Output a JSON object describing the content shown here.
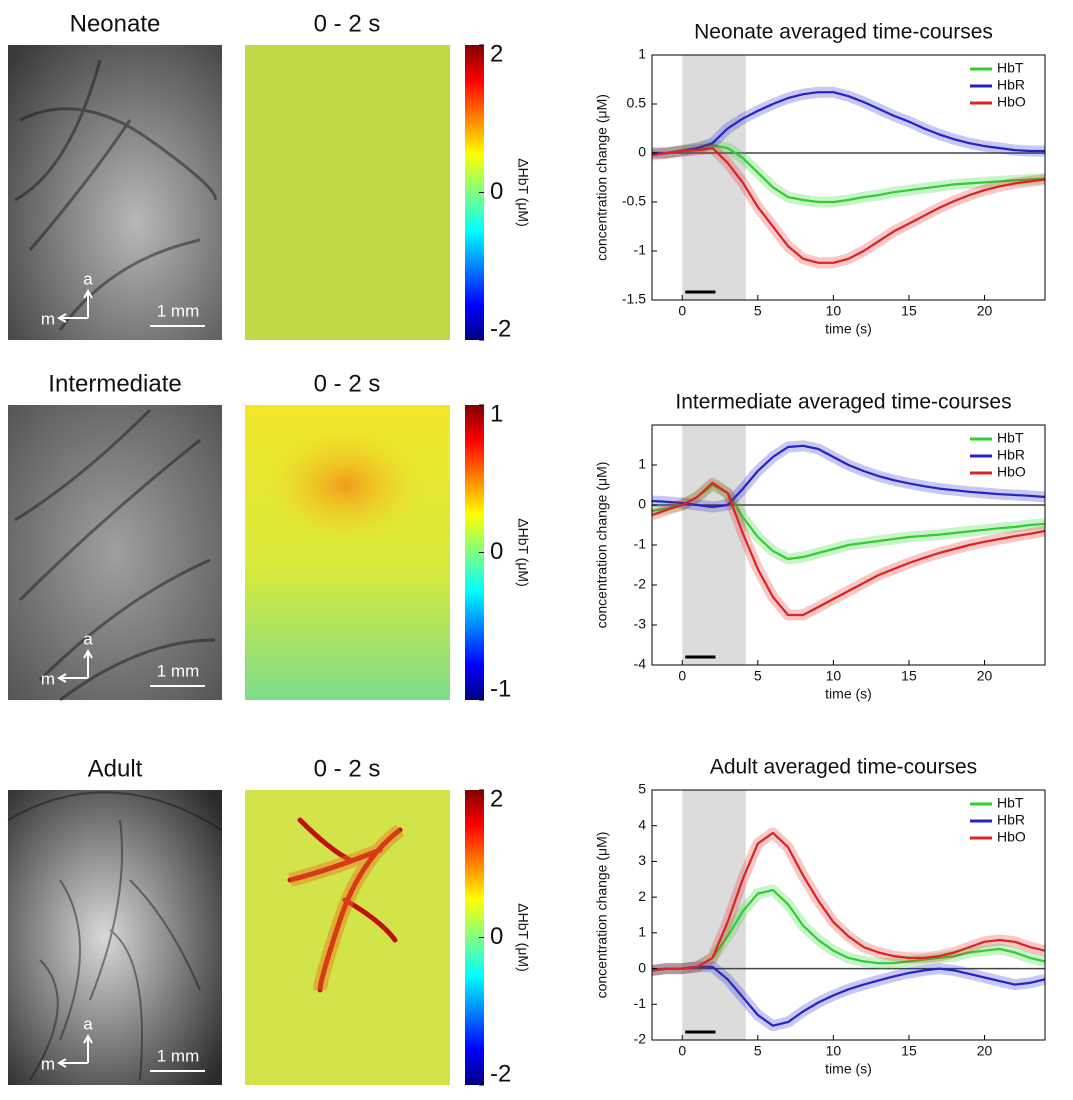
{
  "chart_data": [
    {
      "type": "line",
      "title": "Neonate averaged time-courses",
      "xlabel": "time (s)",
      "ylabel": "concentration change (μM)",
      "x": [
        -2,
        -1,
        0,
        1,
        2,
        3,
        4,
        5,
        6,
        7,
        8,
        9,
        10,
        11,
        12,
        13,
        14,
        15,
        16,
        17,
        18,
        19,
        20,
        21,
        22,
        23,
        24
      ],
      "xlim": [
        -2,
        24
      ],
      "xticks": [
        0,
        5,
        10,
        15,
        20
      ],
      "ylim": [
        -1.5,
        1
      ],
      "yticks": [
        -1.5,
        -1,
        -0.5,
        0,
        0.5,
        1
      ],
      "shaded": [
        0,
        4.2
      ],
      "bar": [
        0.2,
        2.2
      ],
      "legend": "top-right",
      "series": [
        {
          "name": "HbT",
          "color": "#2fcf2f",
          "values": [
            0,
            0,
            0.03,
            0.05,
            0.08,
            0.05,
            -0.05,
            -0.2,
            -0.35,
            -0.45,
            -0.48,
            -0.5,
            -0.5,
            -0.48,
            -0.45,
            -0.43,
            -0.4,
            -0.38,
            -0.36,
            -0.34,
            -0.32,
            -0.31,
            -0.3,
            -0.29,
            -0.28,
            -0.27,
            -0.26
          ]
        },
        {
          "name": "HbR",
          "color": "#2323c8",
          "values": [
            0,
            0,
            0.02,
            0.05,
            0.1,
            0.25,
            0.35,
            0.43,
            0.5,
            0.56,
            0.6,
            0.62,
            0.62,
            0.58,
            0.52,
            0.45,
            0.38,
            0.32,
            0.25,
            0.19,
            0.14,
            0.1,
            0.07,
            0.05,
            0.03,
            0.02,
            0.02
          ]
        },
        {
          "name": "HbO",
          "color": "#dd2222",
          "values": [
            -0.02,
            0,
            0.02,
            0.03,
            0.05,
            -0.1,
            -0.3,
            -0.55,
            -0.75,
            -0.95,
            -1.08,
            -1.12,
            -1.12,
            -1.08,
            -1,
            -0.9,
            -0.8,
            -0.72,
            -0.64,
            -0.56,
            -0.49,
            -0.43,
            -0.38,
            -0.34,
            -0.31,
            -0.29,
            -0.27
          ]
        }
      ]
    },
    {
      "type": "line",
      "title": "Intermediate averaged time-courses",
      "xlabel": "time (s)",
      "ylabel": "concentration change (μM)",
      "x": [
        -2,
        -1,
        0,
        1,
        2,
        3,
        4,
        5,
        6,
        7,
        8,
        9,
        10,
        11,
        12,
        13,
        14,
        15,
        16,
        17,
        18,
        19,
        20,
        21,
        22,
        23,
        24
      ],
      "xlim": [
        -2,
        24
      ],
      "xticks": [
        0,
        5,
        10,
        15,
        20
      ],
      "ylim": [
        -4,
        2
      ],
      "yticks": [
        -4,
        -3,
        -2,
        -1,
        0,
        1
      ],
      "shaded": [
        0,
        4.2
      ],
      "bar": [
        0.2,
        2.2
      ],
      "legend": "top-right",
      "series": [
        {
          "name": "HbT",
          "color": "#2fcf2f",
          "values": [
            -0.15,
            -0.08,
            0,
            0.2,
            0.5,
            0.3,
            -0.3,
            -0.8,
            -1.15,
            -1.35,
            -1.3,
            -1.2,
            -1.1,
            -1,
            -0.95,
            -0.9,
            -0.85,
            -0.8,
            -0.77,
            -0.74,
            -0.7,
            -0.66,
            -0.62,
            -0.58,
            -0.55,
            -0.5,
            -0.47
          ]
        },
        {
          "name": "HbR",
          "color": "#2323c8",
          "values": [
            0.1,
            0.08,
            0.05,
            0,
            -0.05,
            0,
            0.4,
            0.85,
            1.2,
            1.45,
            1.48,
            1.4,
            1.2,
            1,
            0.85,
            0.72,
            0.62,
            0.54,
            0.47,
            0.41,
            0.37,
            0.33,
            0.3,
            0.27,
            0.25,
            0.23,
            0.2
          ]
        },
        {
          "name": "HbO",
          "color": "#dd2222",
          "values": [
            -0.25,
            -0.12,
            0,
            0.2,
            0.55,
            0.3,
            -0.7,
            -1.6,
            -2.3,
            -2.75,
            -2.75,
            -2.55,
            -2.35,
            -2.15,
            -1.95,
            -1.75,
            -1.6,
            -1.45,
            -1.32,
            -1.2,
            -1.1,
            -1,
            -0.92,
            -0.85,
            -0.78,
            -0.72,
            -0.65
          ]
        }
      ]
    },
    {
      "type": "line",
      "title": "Adult averaged time-courses",
      "xlabel": "time (s)",
      "ylabel": "concentration change (μM)",
      "x": [
        -2,
        -1,
        0,
        1,
        2,
        3,
        4,
        5,
        6,
        7,
        8,
        9,
        10,
        11,
        12,
        13,
        14,
        15,
        16,
        17,
        18,
        19,
        20,
        21,
        22,
        23,
        24
      ],
      "xlim": [
        -2,
        24
      ],
      "xticks": [
        0,
        5,
        10,
        15,
        20
      ],
      "ylim": [
        -2,
        5
      ],
      "yticks": [
        -2,
        -1,
        0,
        1,
        2,
        3,
        4,
        5
      ],
      "shaded": [
        0,
        4.2
      ],
      "bar": [
        0.2,
        2.2
      ],
      "legend": "top-right",
      "series": [
        {
          "name": "HbT",
          "color": "#2fcf2f",
          "values": [
            -0.05,
            0,
            0,
            0.05,
            0.3,
            0.9,
            1.6,
            2.1,
            2.2,
            1.8,
            1.2,
            0.8,
            0.5,
            0.3,
            0.2,
            0.15,
            0.15,
            0.2,
            0.25,
            0.3,
            0.35,
            0.45,
            0.5,
            0.55,
            0.45,
            0.3,
            0.2
          ]
        },
        {
          "name": "HbR",
          "color": "#2323c8",
          "values": [
            -0.05,
            0,
            0,
            0.05,
            0.05,
            -0.3,
            -0.8,
            -1.3,
            -1.6,
            -1.5,
            -1.2,
            -0.95,
            -0.75,
            -0.58,
            -0.45,
            -0.33,
            -0.22,
            -0.12,
            -0.05,
            0,
            -0.05,
            -0.15,
            -0.25,
            -0.35,
            -0.45,
            -0.4,
            -0.3
          ]
        },
        {
          "name": "HbO",
          "color": "#dd2222",
          "values": [
            -0.05,
            0,
            0,
            0.05,
            0.3,
            1.3,
            2.5,
            3.5,
            3.8,
            3.4,
            2.6,
            1.9,
            1.3,
            0.9,
            0.6,
            0.45,
            0.35,
            0.3,
            0.3,
            0.35,
            0.45,
            0.6,
            0.75,
            0.8,
            0.75,
            0.6,
            0.5
          ]
        }
      ]
    }
  ],
  "panels": [
    {
      "label": "Neonate",
      "map_title": "0 - 2 s",
      "orientation": [
        "a",
        "m"
      ],
      "scale_bar": "1 mm",
      "colorbar": {
        "label": "ΔHbT (μM)",
        "lim": [
          -2,
          2
        ],
        "ticks": [
          2,
          0,
          -2
        ]
      }
    },
    {
      "label": "Intermediate",
      "map_title": "0 - 2 s",
      "orientation": [
        "a",
        "m"
      ],
      "scale_bar": "1 mm",
      "colorbar": {
        "label": "ΔHbT (μM)",
        "lim": [
          -1,
          1
        ],
        "ticks": [
          1,
          0,
          -1
        ]
      }
    },
    {
      "label": "Adult",
      "map_title": "0 - 2 s",
      "orientation": [
        "a",
        "m"
      ],
      "scale_bar": "1 mm",
      "colorbar": {
        "label": "ΔHbT (μM)",
        "lim": [
          -2,
          2
        ],
        "ticks": [
          2,
          0,
          -2
        ]
      }
    }
  ]
}
